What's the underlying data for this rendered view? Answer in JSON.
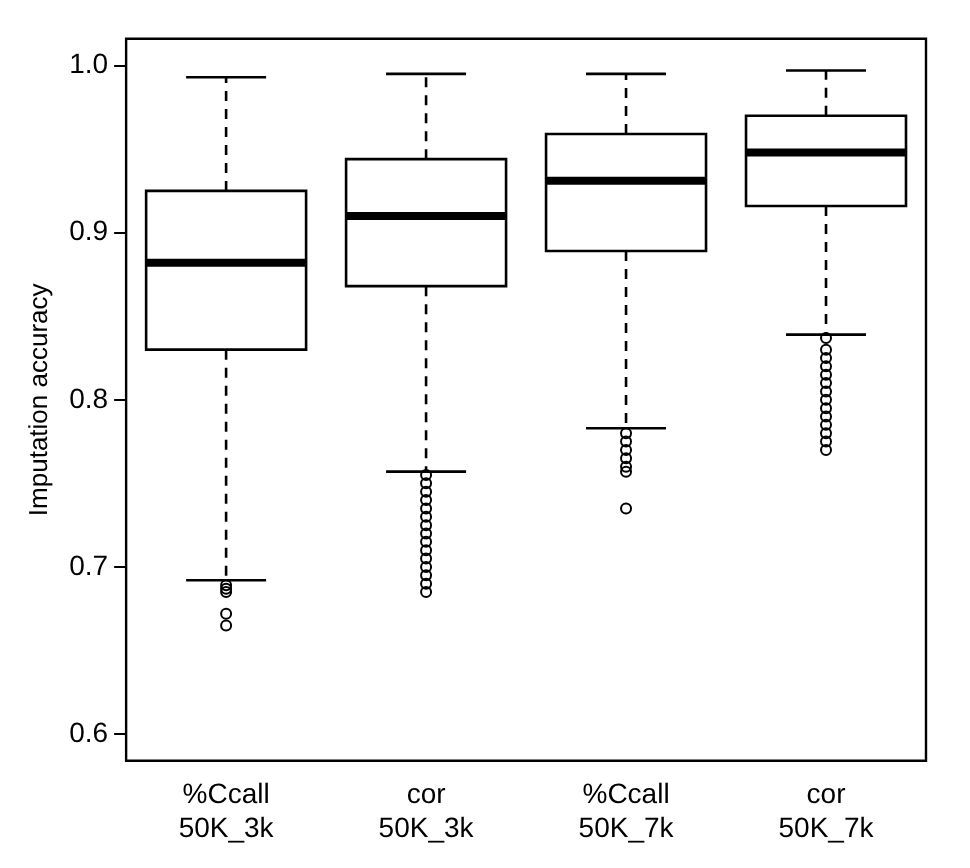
{
  "chart_data": {
    "type": "box",
    "ylabel": "Imputation accuracy",
    "categories": [
      "%Ccall 50K_3k",
      "cor 50K_3k",
      "%Ccall 50K_7k",
      "cor 50K_7k"
    ],
    "boxes": [
      {
        "low": 0.692,
        "q1": 0.83,
        "median": 0.882,
        "q3": 0.925,
        "high": 0.993,
        "outliers": [
          0.689,
          0.687,
          0.685,
          0.672,
          0.665
        ]
      },
      {
        "low": 0.757,
        "q1": 0.868,
        "median": 0.91,
        "q3": 0.944,
        "high": 0.995,
        "outliers": [
          0.755,
          0.75,
          0.745,
          0.74,
          0.735,
          0.73,
          0.725,
          0.72,
          0.715,
          0.71,
          0.705,
          0.7,
          0.695,
          0.69,
          0.685
        ]
      },
      {
        "low": 0.783,
        "q1": 0.889,
        "median": 0.931,
        "q3": 0.959,
        "high": 0.995,
        "outliers": [
          0.78,
          0.775,
          0.77,
          0.765,
          0.76,
          0.757,
          0.735
        ]
      },
      {
        "low": 0.839,
        "q1": 0.916,
        "median": 0.948,
        "q3": 0.97,
        "high": 0.997,
        "outliers": [
          0.837,
          0.83,
          0.825,
          0.82,
          0.815,
          0.81,
          0.805,
          0.8,
          0.795,
          0.79,
          0.785,
          0.78,
          0.775,
          0.77
        ]
      }
    ],
    "ylim": [
      0.584,
      1.016
    ],
    "yticks": [
      {
        "value": 0.6,
        "label": "0.6"
      },
      0.7,
      0.8,
      0.9,
      {
        "value": 1,
        "label": "1.0"
      }
    ],
    "grid": false
  }
}
